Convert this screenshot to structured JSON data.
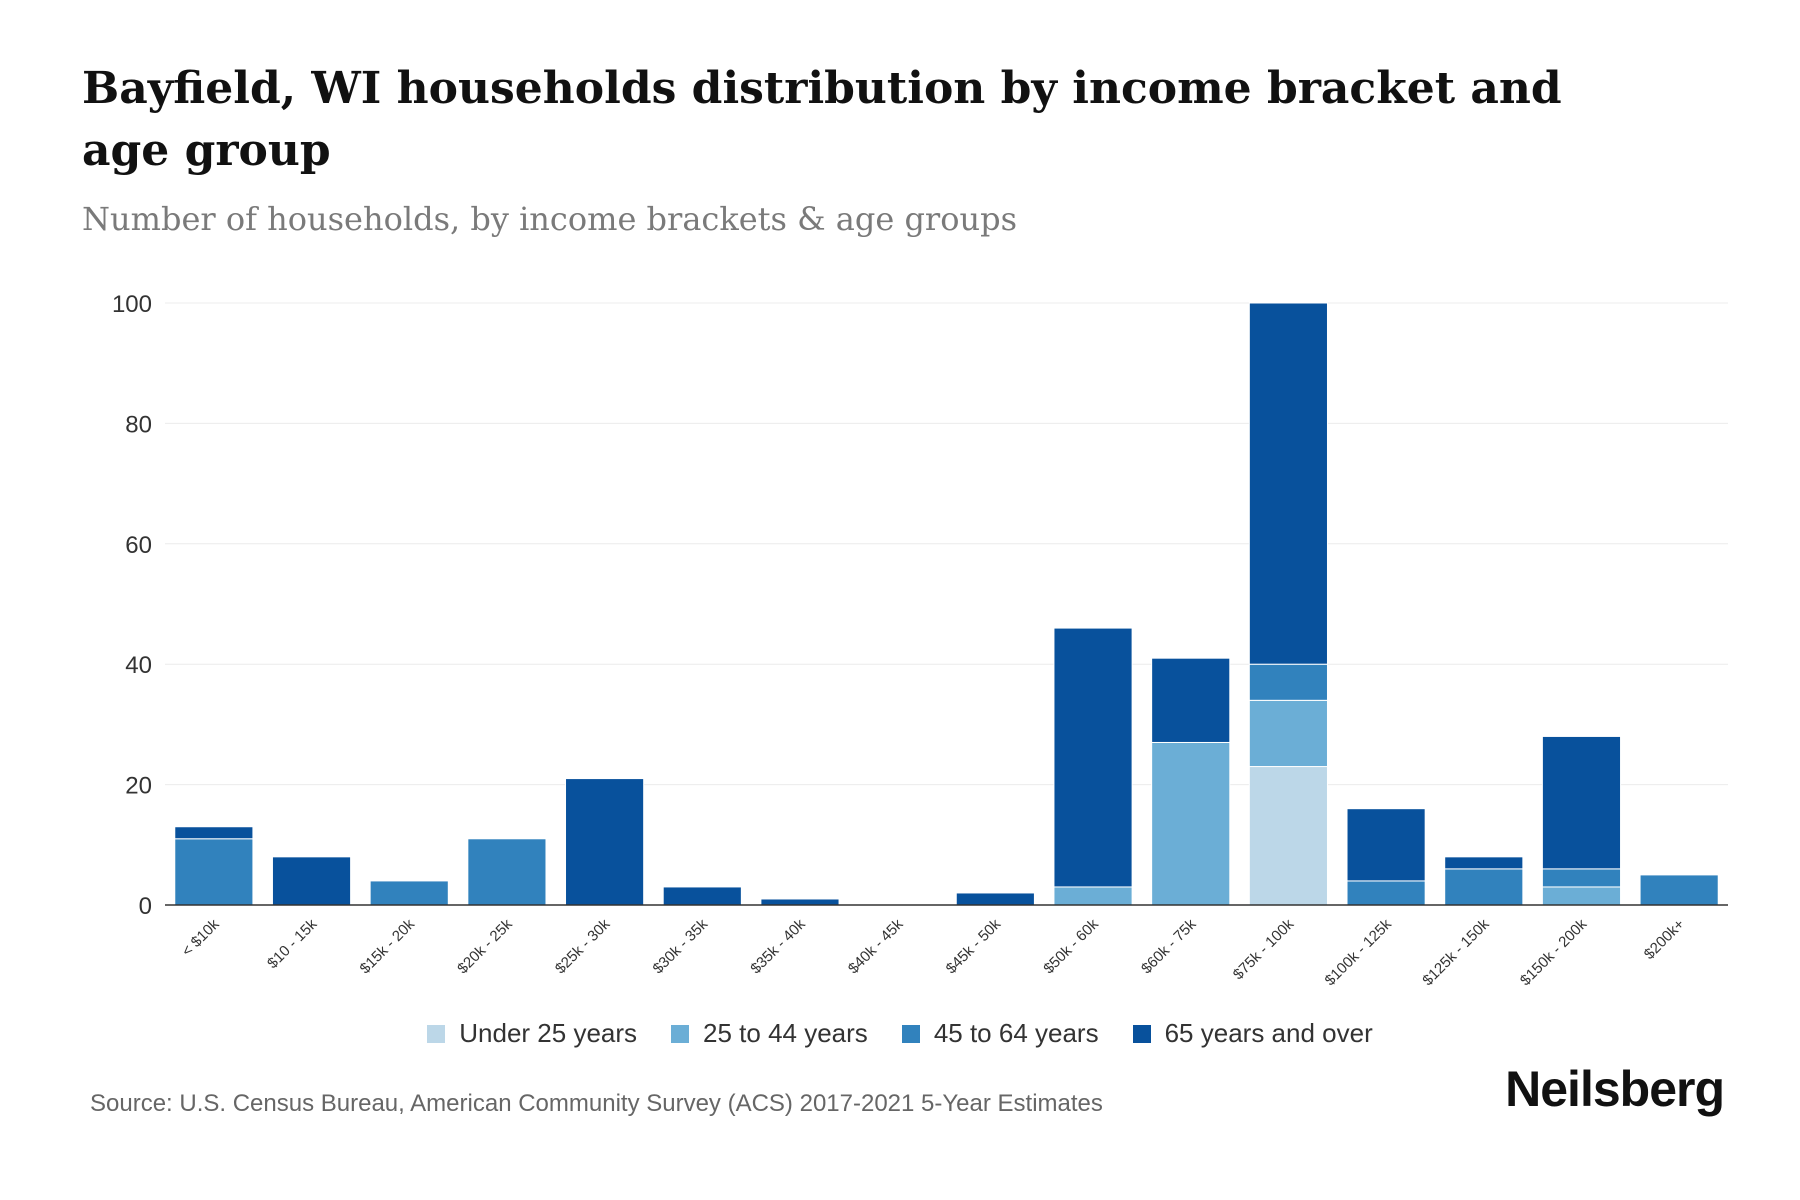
{
  "title": "Bayfield, WI households distribution by income bracket and age group",
  "subtitle": "Number of households, by income brackets & age groups",
  "source": "Source: U.S. Census Bureau, American Community Survey (ACS) 2017-2021 5-Year Estimates",
  "brand": "Neilsberg",
  "chart_data": {
    "type": "bar",
    "stacked": true,
    "ylim": [
      0,
      100
    ],
    "yticks": [
      0,
      20,
      40,
      60,
      80,
      100
    ],
    "categories": [
      "< $10k",
      "$10 - 15k",
      "$15k - 20k",
      "$20k - 25k",
      "$25k - 30k",
      "$30k - 35k",
      "$35k - 40k",
      "$40k - 45k",
      "$45k - 50k",
      "$50k - 60k",
      "$60k - 75k",
      "$75k - 100k",
      "$100k - 125k",
      "$125k - 150k",
      "$150k - 200k",
      "$200k+"
    ],
    "series": [
      {
        "name": "Under 25 years",
        "color": "#bcd7e8",
        "values": [
          0,
          0,
          0,
          0,
          0,
          0,
          0,
          0,
          0,
          0,
          0,
          23,
          0,
          0,
          0,
          0
        ]
      },
      {
        "name": "25 to 44 years",
        "color": "#6baed6",
        "values": [
          0,
          0,
          0,
          0,
          0,
          0,
          0,
          0,
          0,
          3,
          27,
          11,
          0,
          0,
          3,
          0
        ]
      },
      {
        "name": "45 to 64 years",
        "color": "#3182bd",
        "values": [
          11,
          0,
          4,
          11,
          0,
          0,
          0,
          0,
          0,
          0,
          0,
          6,
          4,
          6,
          3,
          5
        ]
      },
      {
        "name": "65 years and over",
        "color": "#08519c",
        "values": [
          2,
          8,
          0,
          0,
          21,
          3,
          1,
          0,
          2,
          43,
          14,
          60,
          12,
          2,
          22,
          0
        ]
      }
    ],
    "legend": "bottom"
  }
}
